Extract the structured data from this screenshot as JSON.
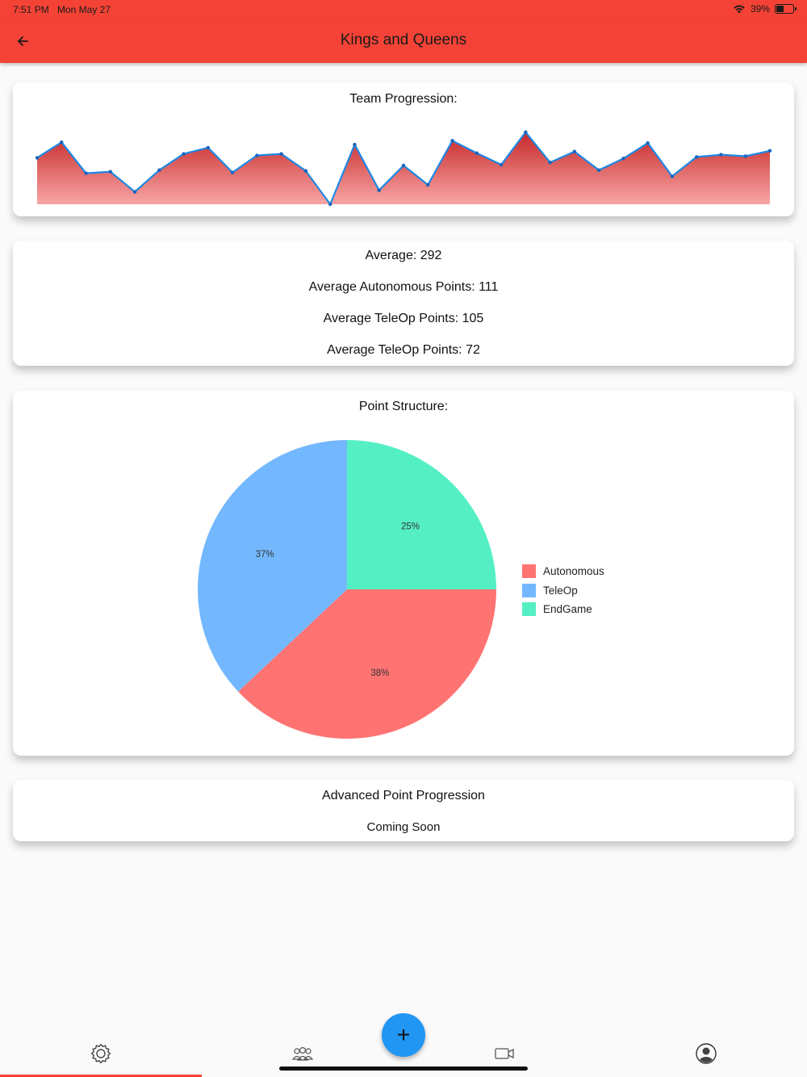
{
  "status_bar": {
    "time": "7:51 PM",
    "date": "Mon May 27",
    "battery": "39%",
    "battery_level": 0.39
  },
  "app_bar": {
    "title": "Kings and Queens",
    "back_icon": "arrow-left-icon"
  },
  "progression": {
    "title": "Team Progression:",
    "chart_data": {
      "type": "area",
      "values": [
        0.6,
        0.8,
        0.4,
        0.42,
        0.16,
        0.44,
        0.65,
        0.73,
        0.41,
        0.63,
        0.65,
        0.43,
        0.0,
        0.77,
        0.18,
        0.5,
        0.25,
        0.82,
        0.66,
        0.51,
        0.93,
        0.54,
        0.68,
        0.44,
        0.59,
        0.79,
        0.36,
        0.61,
        0.64,
        0.62,
        0.69
      ],
      "line_color": "#1e88e5",
      "fill_top_color": "#c62828",
      "fill_bottom_color": "#f8a5a5"
    }
  },
  "averages": {
    "average": "Average: 292",
    "autonomous": "Average Autonomous Points: 111",
    "teleop": "Average TeleOp Points: 105",
    "endgame": "Average TeleOp Points: 72"
  },
  "point_structure": {
    "title": "Point Structure:",
    "chart_data": {
      "type": "pie",
      "slices": [
        {
          "name": "EndGame",
          "value": 25,
          "label": "25%",
          "color": "#54f0c4"
        },
        {
          "name": "Autonomous",
          "value": 38,
          "label": "38%",
          "color": "#ff7373"
        },
        {
          "name": "TeleOp",
          "value": 37,
          "label": "37%",
          "color": "#73b8ff"
        }
      ],
      "legend_order": [
        "Autonomous",
        "TeleOp",
        "EndGame"
      ],
      "legend_placement": "right"
    }
  },
  "advanced": {
    "title": "Advanced Point Progression",
    "subtitle": "Coming Soon"
  },
  "bottom_nav": {
    "items": [
      {
        "icon": "gear-icon",
        "active": true
      },
      {
        "icon": "team-icon",
        "active": false
      },
      {
        "icon": "video-camera-icon",
        "active": false
      },
      {
        "icon": "account-icon",
        "active": false
      }
    ],
    "fab_label": "+",
    "active_color": "#f44336",
    "fab_color": "#2196f3"
  }
}
